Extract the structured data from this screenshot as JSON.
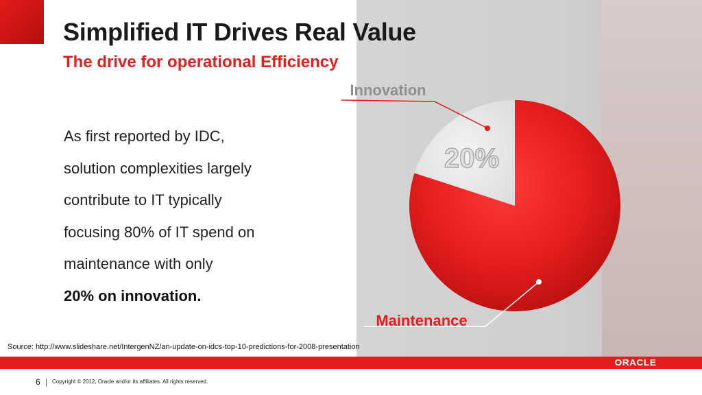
{
  "slide": {
    "title": "Simplified IT Drives Real Value",
    "subtitle": "The drive for operational Efficiency",
    "body_lines": [
      "As first reported by IDC,",
      "solution complexities largely",
      "contribute to IT typically",
      "focusing 80% of IT spend on",
      "maintenance with only"
    ],
    "body_bold": "20% on innovation.",
    "source": "Source: http://www.slideshare.net/IntergenNZ/an-update-on-idcs-top-10-predictions-for-2008-presentation",
    "page_number": "6",
    "separator": "|",
    "copyright": "Copyright © 2012, Oracle and/or its affiliates. All rights reserved.",
    "logo_text": "ORACLE"
  },
  "colors": {
    "accent_red": "#e01f1f",
    "pie_red": "#e41d1d",
    "pie_light": "#e9e9ea"
  },
  "chart_data": {
    "type": "pie",
    "slices": [
      {
        "label": "Innovation",
        "value": 20,
        "value_label": "20%"
      },
      {
        "label": "Maintenance",
        "value": 80,
        "value_label": ""
      }
    ]
  }
}
